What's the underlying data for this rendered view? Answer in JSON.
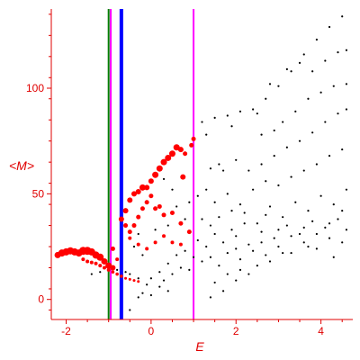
{
  "chart_data": {
    "type": "scatter",
    "xlabel": "E",
    "ylabel": "<M>",
    "xlim": [
      -2.35,
      4.75
    ],
    "ylim": [
      -9.5,
      137.5
    ],
    "x_ticks": [
      -2,
      0,
      2,
      4
    ],
    "y_ticks": [
      0,
      50,
      100
    ],
    "x_tick_labels": [
      "-2",
      "0",
      "2",
      "4"
    ],
    "y_tick_labels": [
      "0",
      "50",
      "100"
    ],
    "grid": false,
    "axis_color": "#e00000",
    "vertical_lines": [
      {
        "x": -1.0,
        "color": "#008000",
        "style": "solid",
        "weight": "thin"
      },
      {
        "x": -0.95,
        "color": "#ff00ff",
        "style": "solid",
        "weight": "thin"
      },
      {
        "x": -0.7,
        "color": "#0000ff",
        "style": "solid",
        "weight": "thick"
      },
      {
        "x": 1.0,
        "color": "#ff00ff",
        "style": "solid",
        "weight": "thin"
      }
    ],
    "series": [
      {
        "color": "#ff0000",
        "marker": "filled-circle",
        "points": [
          {
            "x": -2.2,
            "y": 21,
            "size": 3.5
          },
          {
            "x": -2.1,
            "y": 22,
            "size": 4
          },
          {
            "x": -2.0,
            "y": 22.5,
            "size": 4
          },
          {
            "x": -1.9,
            "y": 23,
            "size": 4
          },
          {
            "x": -1.8,
            "y": 22.5,
            "size": 4
          },
          {
            "x": -1.7,
            "y": 22,
            "size": 4
          },
          {
            "x": -1.6,
            "y": 23,
            "size": 4.5
          },
          {
            "x": -1.5,
            "y": 23,
            "size": 4.5
          },
          {
            "x": -1.4,
            "y": 22.5,
            "size": 4
          },
          {
            "x": -1.3,
            "y": 21,
            "size": 4
          },
          {
            "x": -1.2,
            "y": 20,
            "size": 4
          },
          {
            "x": -1.1,
            "y": 18,
            "size": 3.5
          },
          {
            "x": -1.0,
            "y": 16,
            "size": 3.5
          },
          {
            "x": -0.9,
            "y": 15,
            "size": 3
          },
          {
            "x": -1.6,
            "y": 19,
            "size": 2
          },
          {
            "x": -1.5,
            "y": 18,
            "size": 2
          },
          {
            "x": -1.4,
            "y": 17.5,
            "size": 2
          },
          {
            "x": -1.3,
            "y": 17,
            "size": 2
          },
          {
            "x": -1.2,
            "y": 16,
            "size": 2
          },
          {
            "x": -1.1,
            "y": 15,
            "size": 2
          },
          {
            "x": -1.0,
            "y": 14,
            "size": 2
          },
          {
            "x": -0.9,
            "y": 13,
            "size": 1.8
          },
          {
            "x": -0.8,
            "y": 12,
            "size": 1.8
          },
          {
            "x": -0.7,
            "y": 11,
            "size": 1.8
          },
          {
            "x": -0.6,
            "y": 10,
            "size": 1.5
          },
          {
            "x": -0.5,
            "y": 9.5,
            "size": 1.5
          },
          {
            "x": -0.4,
            "y": 9,
            "size": 1.5
          },
          {
            "x": -0.3,
            "y": 8.5,
            "size": 1.5
          },
          {
            "x": -0.7,
            "y": 38,
            "size": 3
          },
          {
            "x": -0.6,
            "y": 42,
            "size": 3
          },
          {
            "x": -0.5,
            "y": 47,
            "size": 3
          },
          {
            "x": -0.4,
            "y": 50,
            "size": 3
          },
          {
            "x": -0.3,
            "y": 51,
            "size": 3
          },
          {
            "x": -0.2,
            "y": 53,
            "size": 3.5
          },
          {
            "x": -0.1,
            "y": 53,
            "size": 3
          },
          {
            "x": 0.0,
            "y": 56,
            "size": 3
          },
          {
            "x": 0.1,
            "y": 59,
            "size": 3.5
          },
          {
            "x": 0.2,
            "y": 62,
            "size": 3.5
          },
          {
            "x": 0.3,
            "y": 65,
            "size": 3.5
          },
          {
            "x": 0.4,
            "y": 67,
            "size": 3.5
          },
          {
            "x": 0.5,
            "y": 69,
            "size": 3.5
          },
          {
            "x": 0.6,
            "y": 72,
            "size": 3.5
          },
          {
            "x": 0.7,
            "y": 71,
            "size": 3
          },
          {
            "x": 0.8,
            "y": 69,
            "size": 2.5
          },
          {
            "x": 0.95,
            "y": 73,
            "size": 2.5
          },
          {
            "x": 1.0,
            "y": 76,
            "size": 2.5
          },
          {
            "x": 0.75,
            "y": 58,
            "size": 3
          },
          {
            "x": -0.6,
            "y": 35,
            "size": 2.5
          },
          {
            "x": -0.5,
            "y": 32,
            "size": 2.5
          },
          {
            "x": -0.4,
            "y": 35,
            "size": 2.5
          },
          {
            "x": -0.3,
            "y": 39,
            "size": 2.5
          },
          {
            "x": -0.2,
            "y": 43,
            "size": 2.5
          },
          {
            "x": -0.1,
            "y": 46,
            "size": 2.5
          },
          {
            "x": 0.0,
            "y": 49,
            "size": 2.5
          },
          {
            "x": 0.1,
            "y": 43,
            "size": 2.5
          },
          {
            "x": 0.2,
            "y": 44,
            "size": 2.5
          },
          {
            "x": 0.3,
            "y": 40,
            "size": 2.5
          },
          {
            "x": 0.5,
            "y": 41,
            "size": 2.5
          },
          {
            "x": 0.7,
            "y": 36,
            "size": 2.5
          },
          {
            "x": 0.9,
            "y": 32,
            "size": 2.5
          },
          {
            "x": -0.5,
            "y": 29,
            "size": 2
          },
          {
            "x": -0.3,
            "y": 26,
            "size": 2
          },
          {
            "x": -0.1,
            "y": 24,
            "size": 2
          },
          {
            "x": 0.1,
            "y": 27,
            "size": 2
          },
          {
            "x": 0.3,
            "y": 30,
            "size": 2
          },
          {
            "x": 0.5,
            "y": 27,
            "size": 2
          },
          {
            "x": 0.7,
            "y": 26,
            "size": 2
          },
          {
            "x": -0.9,
            "y": 24,
            "size": 2.5
          },
          {
            "x": -0.8,
            "y": 19,
            "size": 2
          }
        ]
      },
      {
        "color": "#000000",
        "marker": "dot",
        "points": [
          {
            "x": 1.2,
            "y": 84
          },
          {
            "x": 1.5,
            "y": 86
          },
          {
            "x": 1.8,
            "y": 87
          },
          {
            "x": 2.1,
            "y": 89
          },
          {
            "x": 2.4,
            "y": 90
          },
          {
            "x": 2.7,
            "y": 95
          },
          {
            "x": 3.0,
            "y": 101
          },
          {
            "x": 3.3,
            "y": 108
          },
          {
            "x": 3.6,
            "y": 116
          },
          {
            "x": 3.9,
            "y": 123
          },
          {
            "x": 4.2,
            "y": 129
          },
          {
            "x": 4.5,
            "y": 134
          },
          {
            "x": 1.3,
            "y": 78
          },
          {
            "x": 1.9,
            "y": 82
          },
          {
            "x": 2.5,
            "y": 88
          },
          {
            "x": 2.8,
            "y": 102
          },
          {
            "x": 3.2,
            "y": 109
          },
          {
            "x": 3.5,
            "y": 112
          },
          {
            "x": 3.8,
            "y": 108
          },
          {
            "x": 4.1,
            "y": 113
          },
          {
            "x": 4.4,
            "y": 117
          },
          {
            "x": 4.6,
            "y": 118
          },
          {
            "x": 2.6,
            "y": 78
          },
          {
            "x": 2.9,
            "y": 80
          },
          {
            "x": 3.1,
            "y": 84
          },
          {
            "x": 3.4,
            "y": 89
          },
          {
            "x": 3.7,
            "y": 95
          },
          {
            "x": 4.0,
            "y": 98
          },
          {
            "x": 4.3,
            "y": 101
          },
          {
            "x": 4.6,
            "y": 102
          },
          {
            "x": 1.4,
            "y": 62
          },
          {
            "x": 1.6,
            "y": 64
          },
          {
            "x": 1.7,
            "y": 61
          },
          {
            "x": 2.0,
            "y": 66
          },
          {
            "x": 2.3,
            "y": 61
          },
          {
            "x": 2.6,
            "y": 64
          },
          {
            "x": 2.9,
            "y": 68
          },
          {
            "x": 3.2,
            "y": 72
          },
          {
            "x": 3.5,
            "y": 75
          },
          {
            "x": 3.8,
            "y": 79
          },
          {
            "x": 4.1,
            "y": 84
          },
          {
            "x": 4.4,
            "y": 88
          },
          {
            "x": 4.6,
            "y": 90
          },
          {
            "x": 1.1,
            "y": 49
          },
          {
            "x": 1.3,
            "y": 52
          },
          {
            "x": 1.5,
            "y": 46
          },
          {
            "x": 1.8,
            "y": 50
          },
          {
            "x": 2.1,
            "y": 45
          },
          {
            "x": 2.4,
            "y": 52
          },
          {
            "x": 2.7,
            "y": 56
          },
          {
            "x": 3.0,
            "y": 54
          },
          {
            "x": 3.3,
            "y": 58
          },
          {
            "x": 3.6,
            "y": 61
          },
          {
            "x": 3.9,
            "y": 64
          },
          {
            "x": 4.2,
            "y": 68
          },
          {
            "x": 4.5,
            "y": 71
          },
          {
            "x": 1.2,
            "y": 38
          },
          {
            "x": 1.4,
            "y": 35
          },
          {
            "x": 1.6,
            "y": 39
          },
          {
            "x": 1.9,
            "y": 33
          },
          {
            "x": 2.2,
            "y": 41
          },
          {
            "x": 2.5,
            "y": 36
          },
          {
            "x": 2.8,
            "y": 44
          },
          {
            "x": 3.1,
            "y": 39
          },
          {
            "x": 3.4,
            "y": 46
          },
          {
            "x": 3.7,
            "y": 42
          },
          {
            "x": 4.0,
            "y": 49
          },
          {
            "x": 4.3,
            "y": 45
          },
          {
            "x": 4.6,
            "y": 52
          },
          {
            "x": 1.1,
            "y": 28
          },
          {
            "x": 1.3,
            "y": 25
          },
          {
            "x": 1.5,
            "y": 31
          },
          {
            "x": 1.7,
            "y": 27
          },
          {
            "x": 2.0,
            "y": 30
          },
          {
            "x": 2.3,
            "y": 26
          },
          {
            "x": 2.6,
            "y": 32
          },
          {
            "x": 2.9,
            "y": 29
          },
          {
            "x": 3.2,
            "y": 35
          },
          {
            "x": 3.5,
            "y": 31
          },
          {
            "x": 3.8,
            "y": 37
          },
          {
            "x": 4.1,
            "y": 34
          },
          {
            "x": 4.4,
            "y": 38
          },
          {
            "x": 4.6,
            "y": 33
          },
          {
            "x": 1.2,
            "y": 18
          },
          {
            "x": 1.4,
            "y": 20
          },
          {
            "x": 1.6,
            "y": 16
          },
          {
            "x": 1.8,
            "y": 22
          },
          {
            "x": 2.1,
            "y": 19
          },
          {
            "x": 2.4,
            "y": 23
          },
          {
            "x": 2.7,
            "y": 21
          },
          {
            "x": 3.0,
            "y": 25
          },
          {
            "x": 3.3,
            "y": 22
          },
          {
            "x": 3.6,
            "y": 27
          },
          {
            "x": 3.9,
            "y": 24
          },
          {
            "x": 4.2,
            "y": 29
          },
          {
            "x": 4.5,
            "y": 27
          },
          {
            "x": 1.5,
            "y": 8
          },
          {
            "x": 1.8,
            "y": 12
          },
          {
            "x": 2.1,
            "y": 14
          },
          {
            "x": 2.5,
            "y": 16
          },
          {
            "x": 2.8,
            "y": 18
          },
          {
            "x": 1.4,
            "y": 1
          },
          {
            "x": 1.7,
            "y": 4
          },
          {
            "x": 2.0,
            "y": 9
          },
          {
            "x": 2.3,
            "y": 12
          },
          {
            "x": 1.9,
            "y": 42
          },
          {
            "x": 2.2,
            "y": 36
          },
          {
            "x": 2.7,
            "y": 40
          },
          {
            "x": 3.0,
            "y": 33
          },
          {
            "x": 3.3,
            "y": 30
          },
          {
            "x": 3.6,
            "y": 34
          },
          {
            "x": 3.9,
            "y": 31
          },
          {
            "x": 4.2,
            "y": 36
          },
          {
            "x": 4.5,
            "y": 42
          },
          {
            "x": 2.0,
            "y": 24
          },
          {
            "x": 2.6,
            "y": 27
          },
          {
            "x": 3.1,
            "y": 22
          },
          {
            "x": 3.7,
            "y": 25
          },
          {
            "x": 4.3,
            "y": 20
          },
          {
            "x": 0.2,
            "y": 13
          },
          {
            "x": 0.4,
            "y": 17
          },
          {
            "x": 0.6,
            "y": 21
          },
          {
            "x": 0.8,
            "y": 23
          },
          {
            "x": 1.0,
            "y": 20
          },
          {
            "x": 0.3,
            "y": 9
          },
          {
            "x": 0.5,
            "y": 12
          },
          {
            "x": 0.7,
            "y": 15
          },
          {
            "x": 0.9,
            "y": 14
          },
          {
            "x": 0.0,
            "y": 10
          },
          {
            "x": -0.1,
            "y": 7
          },
          {
            "x": -0.3,
            "y": 10
          },
          {
            "x": -0.5,
            "y": 12
          },
          {
            "x": -0.6,
            "y": 13
          },
          {
            "x": -0.8,
            "y": 14
          },
          {
            "x": -1.2,
            "y": 13
          },
          {
            "x": -1.4,
            "y": 12
          },
          {
            "x": -0.2,
            "y": 3
          },
          {
            "x": 0.0,
            "y": 2
          },
          {
            "x": 0.2,
            "y": 6
          },
          {
            "x": 0.4,
            "y": 4
          },
          {
            "x": -0.5,
            "y": -5
          },
          {
            "x": -0.3,
            "y": 1
          },
          {
            "x": -0.4,
            "y": 25
          },
          {
            "x": -0.2,
            "y": 21
          },
          {
            "x": 0.1,
            "y": 33
          },
          {
            "x": 0.4,
            "y": 35
          },
          {
            "x": 0.6,
            "y": 44
          },
          {
            "x": 0.3,
            "y": 57
          },
          {
            "x": 0.5,
            "y": 52
          },
          {
            "x": 0.9,
            "y": 46
          },
          {
            "x": 0.8,
            "y": 38
          },
          {
            "x": -0.3,
            "y": 31
          }
        ]
      }
    ]
  }
}
